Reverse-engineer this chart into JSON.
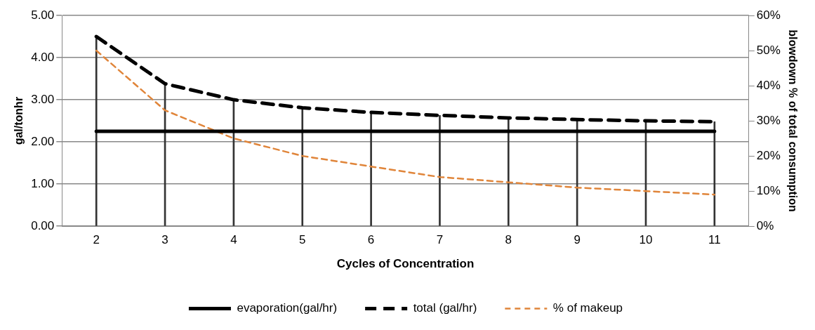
{
  "chart_data": {
    "type": "line",
    "xlabel": "Cycles of Concentration",
    "ylabel": "gal/tonhr",
    "y2label": "blowdown % of total consumption",
    "categories": [
      "2",
      "3",
      "4",
      "5",
      "6",
      "7",
      "8",
      "9",
      "10",
      "11"
    ],
    "series": [
      {
        "name": "evaporation(gal/hr)",
        "color": "#000000",
        "line_style": "solid",
        "values": [
          2.25,
          2.25,
          2.25,
          2.25,
          2.25,
          2.25,
          2.25,
          2.25,
          2.25,
          2.25
        ]
      },
      {
        "name": "total (gal/hr)",
        "color": "#000000",
        "line_style": "dashed",
        "values": [
          4.5,
          3.38,
          3.0,
          2.81,
          2.7,
          2.63,
          2.57,
          2.53,
          2.5,
          2.48
        ]
      },
      {
        "type": "bar",
        "color": "#333333",
        "values": [
          4.5,
          3.38,
          3.0,
          2.81,
          2.7,
          2.63,
          2.57,
          2.53,
          2.5,
          2.48
        ]
      },
      {
        "name": "% of makeup",
        "color": "#e0853a",
        "line_style": "dashed",
        "axis": "y2",
        "values": [
          50,
          33,
          25,
          20,
          17,
          14,
          12.5,
          11,
          10,
          9
        ]
      }
    ],
    "ylim": [
      0,
      5
    ],
    "yticks": [
      {
        "value": 0,
        "label": "0.00"
      },
      {
        "value": 1,
        "label": "1.00"
      },
      {
        "value": 2,
        "label": "2.00"
      },
      {
        "value": 3,
        "label": "3.00"
      },
      {
        "value": 4,
        "label": "4.00"
      },
      {
        "value": 5,
        "label": "5.00"
      }
    ],
    "y2lim": [
      0,
      60
    ],
    "y2ticks": [
      {
        "value": 0,
        "label": "0%"
      },
      {
        "value": 10,
        "label": "10%"
      },
      {
        "value": 20,
        "label": "20%"
      },
      {
        "value": 30,
        "label": "30%"
      },
      {
        "value": 40,
        "label": "40%"
      },
      {
        "value": 50,
        "label": "50%"
      },
      {
        "value": 60,
        "label": "60%"
      }
    ],
    "grid": "y",
    "legend": "bottom",
    "marker": "none"
  }
}
